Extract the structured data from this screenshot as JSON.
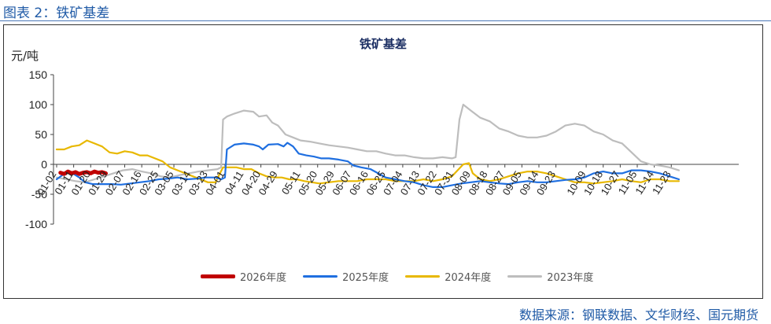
{
  "caption": "图表 2：铁矿基差",
  "source": "数据来源：钢联数据、文华财经、国元期货",
  "chart_data": {
    "type": "line",
    "title": "铁矿基差",
    "ylabel": "元/吨",
    "xlabel": "",
    "ylim": [
      -100,
      150
    ],
    "yticks": [
      -100,
      -50,
      0,
      50,
      100,
      150
    ],
    "ytick_labels": [
      "-100",
      "-50",
      "0",
      "50",
      "100",
      "150"
    ],
    "xlim": [
      1,
      360
    ],
    "x_tick_labels": [
      "01-02",
      "01-11",
      "01-20",
      "01-29",
      "02-07",
      "02-16",
      "02-25",
      "03-05",
      "03-14",
      "03-23",
      "04-01",
      "04-11",
      "04-20",
      "04-29",
      "05-11",
      "05-20",
      "05-29",
      "06-07",
      "06-16",
      "06-25",
      "07-04",
      "07-13",
      "07-22",
      "07-31",
      "08-09",
      "08-18",
      "08-27",
      "09-05",
      "09-14",
      "09-23",
      "10-09",
      "10-18",
      "10-27",
      "11-05",
      "11-14",
      "11-23"
    ],
    "x_tick_days": [
      1,
      10,
      19,
      28,
      37,
      46,
      55,
      63,
      72,
      81,
      90,
      100,
      109,
      118,
      130,
      139,
      148,
      157,
      166,
      175,
      184,
      193,
      202,
      211,
      220,
      229,
      238,
      247,
      256,
      265,
      281,
      290,
      299,
      308,
      317,
      326
    ],
    "series": [
      {
        "name": "2026年度",
        "color": "#c00000",
        "width": 5,
        "points": [
          [
            3,
            -14
          ],
          [
            5,
            -16
          ],
          [
            7,
            -12
          ],
          [
            9,
            -15
          ],
          [
            11,
            -13
          ],
          [
            13,
            -16
          ],
          [
            15,
            -14
          ],
          [
            17,
            -13
          ],
          [
            19,
            -15
          ],
          [
            21,
            -12
          ],
          [
            23,
            -14
          ],
          [
            25,
            -13
          ],
          [
            27,
            -15
          ]
        ]
      },
      {
        "name": "2025年度",
        "color": "#1f6fe0",
        "width": 2.2,
        "points": [
          [
            1,
            -25
          ],
          [
            4,
            -18
          ],
          [
            7,
            -14
          ],
          [
            10,
            -16
          ],
          [
            13,
            -22
          ],
          [
            16,
            -30
          ],
          [
            20,
            -33
          ],
          [
            25,
            -33
          ],
          [
            30,
            -33
          ],
          [
            35,
            -34
          ],
          [
            40,
            -32
          ],
          [
            45,
            -30
          ],
          [
            50,
            -28
          ],
          [
            55,
            -25
          ],
          [
            60,
            -24
          ],
          [
            65,
            -22
          ],
          [
            70,
            -25
          ],
          [
            75,
            -24
          ],
          [
            80,
            -22
          ],
          [
            85,
            -22
          ],
          [
            88,
            -25
          ],
          [
            90,
            -22
          ],
          [
            91,
            25
          ],
          [
            95,
            33
          ],
          [
            100,
            35
          ],
          [
            105,
            33
          ],
          [
            108,
            30
          ],
          [
            110,
            25
          ],
          [
            113,
            33
          ],
          [
            118,
            34
          ],
          [
            121,
            30
          ],
          [
            123,
            36
          ],
          [
            126,
            30
          ],
          [
            129,
            18
          ],
          [
            133,
            15
          ],
          [
            137,
            13
          ],
          [
            141,
            10
          ],
          [
            145,
            10
          ],
          [
            150,
            8
          ],
          [
            155,
            5
          ],
          [
            158,
            -2
          ],
          [
            162,
            -5
          ],
          [
            167,
            -8
          ],
          [
            171,
            -15
          ],
          [
            175,
            -22
          ],
          [
            180,
            -25
          ],
          [
            185,
            -28
          ],
          [
            190,
            -30
          ],
          [
            195,
            -35
          ],
          [
            200,
            -38
          ],
          [
            205,
            -38
          ],
          [
            210,
            -35
          ],
          [
            215,
            -32
          ],
          [
            220,
            -30
          ],
          [
            225,
            -28
          ],
          [
            230,
            -30
          ],
          [
            235,
            -32
          ],
          [
            240,
            -33
          ],
          [
            245,
            -30
          ],
          [
            250,
            -28
          ],
          [
            255,
            -30
          ],
          [
            260,
            -30
          ],
          [
            265,
            -28
          ],
          [
            270,
            -26
          ],
          [
            275,
            -25
          ],
          [
            280,
            -22
          ],
          [
            285,
            -15
          ],
          [
            290,
            -12
          ],
          [
            295,
            -15
          ],
          [
            300,
            -15
          ],
          [
            305,
            -10
          ],
          [
            310,
            -10
          ],
          [
            315,
            -12
          ],
          [
            320,
            -15
          ],
          [
            325,
            -20
          ],
          [
            330,
            -25
          ]
        ]
      },
      {
        "name": "2024年度",
        "color": "#e8b800",
        "width": 2.2,
        "points": [
          [
            1,
            25
          ],
          [
            5,
            25
          ],
          [
            9,
            30
          ],
          [
            13,
            32
          ],
          [
            17,
            40
          ],
          [
            21,
            35
          ],
          [
            25,
            30
          ],
          [
            29,
            20
          ],
          [
            33,
            18
          ],
          [
            37,
            22
          ],
          [
            41,
            20
          ],
          [
            45,
            15
          ],
          [
            49,
            15
          ],
          [
            53,
            10
          ],
          [
            57,
            5
          ],
          [
            61,
            -5
          ],
          [
            65,
            -10
          ],
          [
            69,
            -15
          ],
          [
            73,
            -20
          ],
          [
            77,
            -25
          ],
          [
            81,
            -30
          ],
          [
            85,
            -30
          ],
          [
            89,
            -5
          ],
          [
            92,
            -5
          ],
          [
            96,
            -5
          ],
          [
            100,
            -8
          ],
          [
            104,
            -8
          ],
          [
            108,
            -15
          ],
          [
            112,
            -20
          ],
          [
            116,
            -22
          ],
          [
            120,
            -22
          ],
          [
            124,
            -25
          ],
          [
            128,
            -25
          ],
          [
            132,
            -28
          ],
          [
            136,
            -30
          ],
          [
            140,
            -32
          ],
          [
            145,
            -30
          ],
          [
            150,
            -28
          ],
          [
            155,
            -28
          ],
          [
            160,
            -28
          ],
          [
            165,
            -25
          ],
          [
            170,
            -25
          ],
          [
            175,
            -25
          ],
          [
            180,
            -28
          ],
          [
            185,
            -28
          ],
          [
            190,
            -28
          ],
          [
            195,
            -25
          ],
          [
            200,
            -28
          ],
          [
            205,
            -25
          ],
          [
            210,
            -20
          ],
          [
            213,
            -10
          ],
          [
            216,
            0
          ],
          [
            219,
            2
          ],
          [
            221,
            -15
          ],
          [
            225,
            -25
          ],
          [
            230,
            -28
          ],
          [
            235,
            -25
          ],
          [
            240,
            -20
          ],
          [
            245,
            -15
          ],
          [
            250,
            -12
          ],
          [
            255,
            -12
          ],
          [
            260,
            -15
          ],
          [
            265,
            -20
          ],
          [
            270,
            -25
          ],
          [
            275,
            -30
          ],
          [
            280,
            -30
          ],
          [
            285,
            -32
          ],
          [
            290,
            -30
          ],
          [
            295,
            -28
          ],
          [
            300,
            -25
          ],
          [
            305,
            -28
          ],
          [
            310,
            -30
          ],
          [
            315,
            -25
          ],
          [
            320,
            -25
          ],
          [
            325,
            -28
          ],
          [
            330,
            -28
          ]
        ]
      },
      {
        "name": "2023年度",
        "color": "#bdbdbd",
        "width": 2.2,
        "points": [
          [
            1,
            -22
          ],
          [
            6,
            -25
          ],
          [
            11,
            -28
          ],
          [
            16,
            -30
          ],
          [
            21,
            -25
          ],
          [
            26,
            -20
          ],
          [
            31,
            -15
          ],
          [
            36,
            -10
          ],
          [
            41,
            -8
          ],
          [
            46,
            -12
          ],
          [
            51,
            -15
          ],
          [
            56,
            -20
          ],
          [
            61,
            -22
          ],
          [
            66,
            -18
          ],
          [
            71,
            -15
          ],
          [
            76,
            -12
          ],
          [
            81,
            -10
          ],
          [
            86,
            -8
          ],
          [
            88,
            -5
          ],
          [
            89,
            75
          ],
          [
            91,
            80
          ],
          [
            95,
            85
          ],
          [
            100,
            90
          ],
          [
            105,
            88
          ],
          [
            108,
            80
          ],
          [
            112,
            82
          ],
          [
            115,
            70
          ],
          [
            118,
            65
          ],
          [
            122,
            50
          ],
          [
            126,
            45
          ],
          [
            130,
            40
          ],
          [
            135,
            38
          ],
          [
            140,
            35
          ],
          [
            145,
            32
          ],
          [
            150,
            30
          ],
          [
            155,
            28
          ],
          [
            160,
            25
          ],
          [
            165,
            22
          ],
          [
            170,
            22
          ],
          [
            175,
            18
          ],
          [
            180,
            15
          ],
          [
            185,
            15
          ],
          [
            190,
            12
          ],
          [
            195,
            10
          ],
          [
            200,
            10
          ],
          [
            205,
            12
          ],
          [
            210,
            10
          ],
          [
            212,
            12
          ],
          [
            214,
            75
          ],
          [
            216,
            100
          ],
          [
            220,
            90
          ],
          [
            225,
            78
          ],
          [
            230,
            72
          ],
          [
            235,
            60
          ],
          [
            240,
            55
          ],
          [
            245,
            48
          ],
          [
            250,
            45
          ],
          [
            255,
            45
          ],
          [
            260,
            48
          ],
          [
            265,
            55
          ],
          [
            270,
            65
          ],
          [
            275,
            68
          ],
          [
            280,
            65
          ],
          [
            285,
            55
          ],
          [
            290,
            50
          ],
          [
            295,
            40
          ],
          [
            300,
            35
          ],
          [
            305,
            20
          ],
          [
            310,
            5
          ],
          [
            315,
            0
          ],
          [
            320,
            -2
          ],
          [
            325,
            -5
          ],
          [
            330,
            -10
          ]
        ]
      }
    ]
  }
}
